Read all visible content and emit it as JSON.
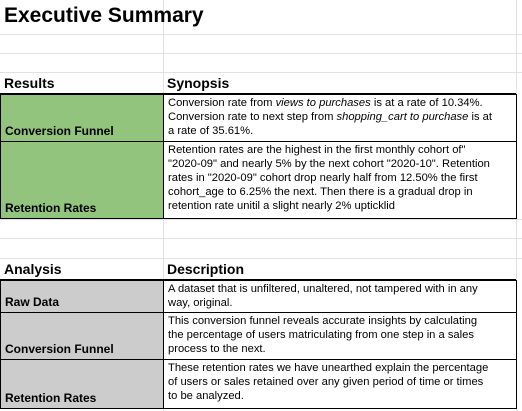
{
  "title": "Executive Summary",
  "colors": {
    "green": "#93c47d",
    "grey": "#cccccc",
    "gridline": "#e1e1e1"
  },
  "results": {
    "col1_header": "Results",
    "col2_header": "Synopsis",
    "rows": [
      {
        "label": "Conversion Funnel",
        "lines": [
          [
            "Conversion rate from ",
            "views to purchases",
            " is at a rate of 10.34%."
          ],
          [
            "Conversion rate to next step from ",
            "shopping_cart to purchase",
            " is at"
          ],
          [
            "a rate of 35.61%.",
            "",
            ""
          ]
        ]
      },
      {
        "label": "Retention Rates",
        "lines": [
          "Retention rates are the highest in the first monthly cohort of\"",
          "\"2020-09\" and nearly 5% by the next cohort \"2020-10\". Retention",
          "rates in \"2020-09\" cohort drop nearly half from 12.50% the first",
          "cohort_age to 6.25% the next. Then there is a gradual drop in",
          "retention rate unitil a slight nearly 2% uptick"
        ],
        "cut_text": "lid"
      }
    ]
  },
  "analysis": {
    "col1_header": "Analysis",
    "col2_header": "Description",
    "rows": [
      {
        "label": "Raw Data",
        "lines": [
          "A dataset that is unfiltered, unaltered, not tampered with in any",
          "way, original."
        ]
      },
      {
        "label": "Conversion Funnel",
        "lines": [
          "This conversion funnel reveals accurate insights by calculating",
          "the percentage of users matriculating from one step in a sales",
          "process to the next."
        ]
      },
      {
        "label": "Retention Rates",
        "lines": [
          "These retention rates we have unearthed explain the percentage",
          "of users or sales retained over any given period of time or times",
          "to be analyzed."
        ]
      }
    ]
  }
}
